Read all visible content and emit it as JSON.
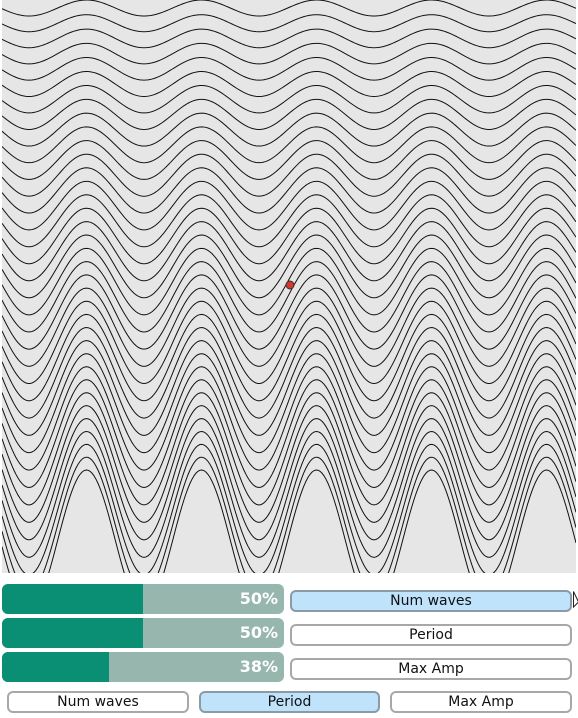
{
  "colors": {
    "canvas_bg": "#e6e6e6",
    "wave_stroke": "#111111",
    "marker": "#d43a2c",
    "bar_fill": "#0b8f74",
    "bar_track": "#97b6ad",
    "button_active": "#bfe3fb"
  },
  "canvas": {
    "marker": "red-point",
    "wave_count": 36
  },
  "sliders": [
    {
      "percent_text": "50%",
      "value": 0.5,
      "button_label": "Num waves",
      "active": true
    },
    {
      "percent_text": "50%",
      "value": 0.5,
      "button_label": "Period",
      "active": false
    },
    {
      "percent_text": "38%",
      "value": 0.38,
      "button_label": "Max Amp",
      "active": false
    }
  ],
  "mode_buttons": [
    {
      "label": "Num waves",
      "active": false
    },
    {
      "label": "Period",
      "active": true
    },
    {
      "label": "Max Amp",
      "active": false
    }
  ]
}
